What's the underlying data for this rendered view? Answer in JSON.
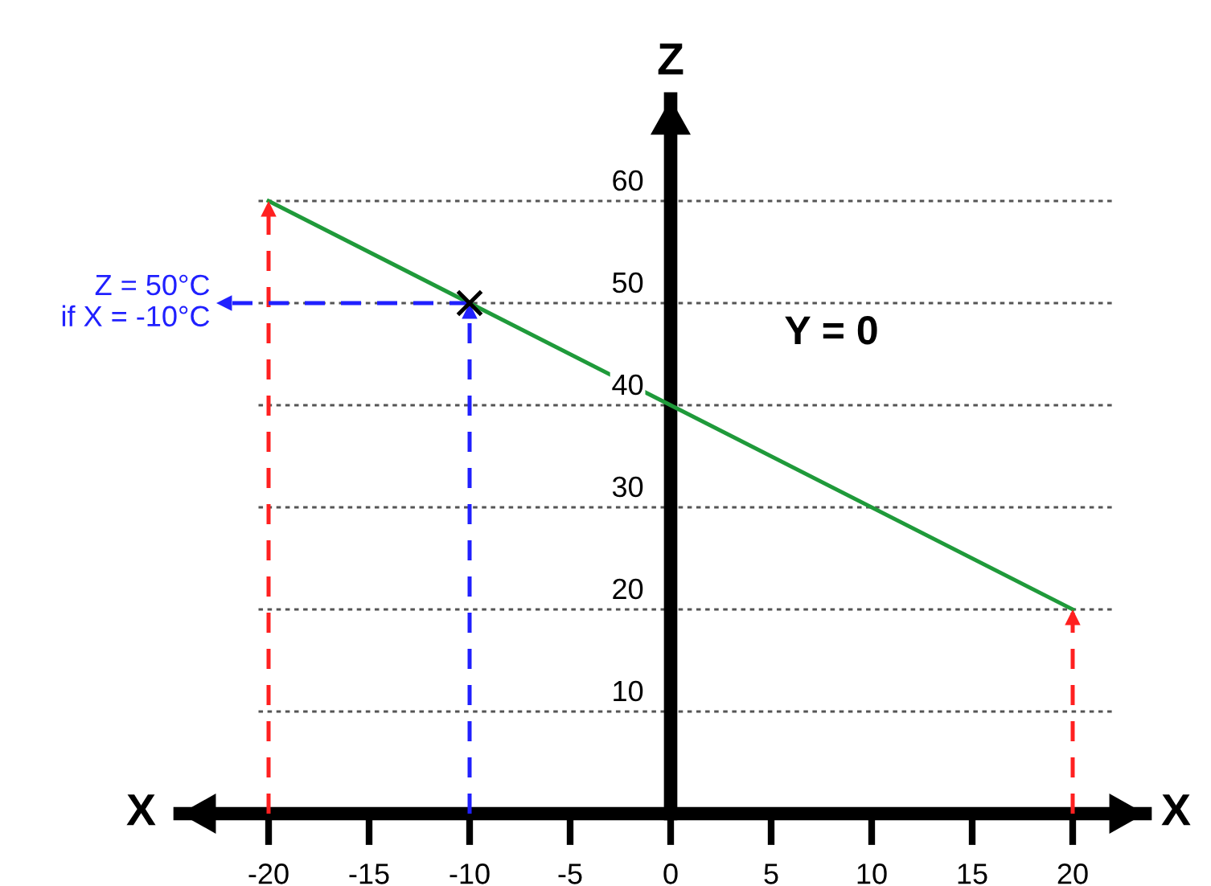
{
  "chart_data": {
    "type": "line",
    "xlabel": "X",
    "ylabel": "Z",
    "xlim": [
      -24.4,
      23.6
    ],
    "ylim": [
      0,
      70
    ],
    "xticks": [
      -20,
      -15,
      -10,
      -5,
      0,
      5,
      10,
      15,
      20
    ],
    "yticks": [
      10,
      20,
      30,
      40,
      50,
      60
    ],
    "grid": "y",
    "series": [
      {
        "x": [
          -20,
          20
        ],
        "values": [
          60,
          20
        ],
        "color": "#1f9a3a",
        "line_style": "solid"
      },
      {
        "x": [
          -20,
          -20
        ],
        "values": [
          0,
          60
        ],
        "color": "#ff2020",
        "line_style": "dashed"
      },
      {
        "x": [
          20,
          20
        ],
        "values": [
          0,
          20
        ],
        "color": "#ff2020",
        "line_style": "dashed"
      },
      {
        "x": [
          -10,
          -10
        ],
        "values": [
          0,
          50
        ],
        "color": "#2020ff",
        "line_style": "dashed"
      },
      {
        "x": [
          -10,
          -22.6
        ],
        "values": [
          50,
          50
        ],
        "color": "#2020ff",
        "line_style": "dashed"
      },
      {
        "type": "scatter",
        "x": [
          -10
        ],
        "values": [
          50
        ],
        "color": "#000000",
        "marker": "cross"
      }
    ],
    "annotations": [
      "Y = 0",
      "Z = 50°C\nif X = -10°C"
    ]
  }
}
